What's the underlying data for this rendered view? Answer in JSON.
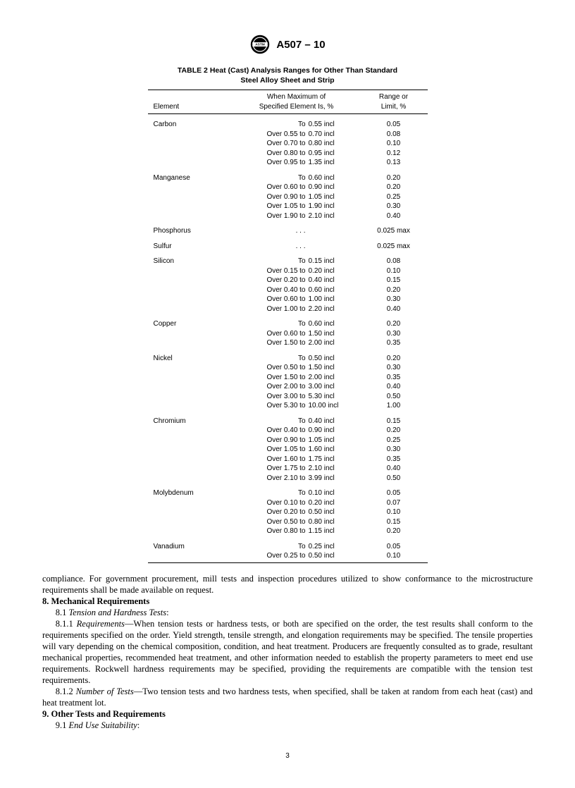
{
  "header": {
    "doc_id": "A507 – 10"
  },
  "table": {
    "title": "TABLE 2   Heat (Cast) Analysis Ranges for Other Than Standard Steel Alloy Sheet and Strip",
    "columns": {
      "element": "Element",
      "spec": "When Maximum of\nSpecified Element Is, %",
      "range": "Range or\nLimit, %"
    },
    "groups": [
      {
        "element": "Carbon",
        "rows": [
          {
            "aL": "To",
            "aR": "0.55 incl",
            "range": "0.05"
          },
          {
            "aL": "Over 0.55 to",
            "aR": "0.70 incl",
            "range": "0.08"
          },
          {
            "aL": "Over 0.70 to",
            "aR": "0.80 incl",
            "range": "0.10"
          },
          {
            "aL": "Over 0.80 to",
            "aR": "0.95 incl",
            "range": "0.12"
          },
          {
            "aL": "Over 0.95 to",
            "aR": "1.35 incl",
            "range": "0.13"
          }
        ]
      },
      {
        "element": "Manganese",
        "rows": [
          {
            "aL": "To",
            "aR": "0.60 incl",
            "range": "0.20"
          },
          {
            "aL": "Over 0.60 to",
            "aR": "0.90 incl",
            "range": "0.20"
          },
          {
            "aL": "Over 0.90 to",
            "aR": "1.05 incl",
            "range": "0.25"
          },
          {
            "aL": "Over 1.05 to",
            "aR": "1.90 incl",
            "range": "0.30"
          },
          {
            "aL": "Over 1.90 to",
            "aR": "2.10 incl",
            "range": "0.40"
          }
        ]
      },
      {
        "element": "Phosphorus",
        "rows": [
          {
            "aL": ". . .",
            "aR": "",
            "range": "0.025 max"
          }
        ]
      },
      {
        "element": "Sulfur",
        "rows": [
          {
            "aL": ". . .",
            "aR": "",
            "range": "0.025 max"
          }
        ]
      },
      {
        "element": "Silicon",
        "rows": [
          {
            "aL": "To",
            "aR": "0.15 incl",
            "range": "0.08"
          },
          {
            "aL": "Over 0.15 to",
            "aR": "0.20 incl",
            "range": "0.10"
          },
          {
            "aL": "Over 0.20 to",
            "aR": "0.40 incl",
            "range": "0.15"
          },
          {
            "aL": "Over 0.40 to",
            "aR": "0.60 incl",
            "range": "0.20"
          },
          {
            "aL": "Over 0.60 to",
            "aR": "1.00 incl",
            "range": "0.30"
          },
          {
            "aL": "Over 1.00 to",
            "aR": "2.20 incl",
            "range": "0.40"
          }
        ]
      },
      {
        "element": "Copper",
        "rows": [
          {
            "aL": "To",
            "aR": "0.60 incl",
            "range": "0.20"
          },
          {
            "aL": "Over 0.60 to",
            "aR": "1.50 incl",
            "range": "0.30"
          },
          {
            "aL": "Over 1.50 to",
            "aR": "2.00 incl",
            "range": "0.35"
          }
        ]
      },
      {
        "element": "Nickel",
        "rows": [
          {
            "aL": "To",
            "aR": "0.50 incl",
            "range": "0.20"
          },
          {
            "aL": "Over 0.50 to",
            "aR": "1.50 incl",
            "range": "0.30"
          },
          {
            "aL": "Over 1.50 to",
            "aR": "2.00 incl",
            "range": "0.35"
          },
          {
            "aL": "Over 2.00 to",
            "aR": "3.00 incl",
            "range": "0.40"
          },
          {
            "aL": "Over 3.00 to",
            "aR": "5.30 incl",
            "range": "0.50"
          },
          {
            "aL": "Over 5.30 to",
            "aR": "10.00 incl",
            "range": "1.00"
          }
        ]
      },
      {
        "element": "Chromium",
        "rows": [
          {
            "aL": "To",
            "aR": "0.40 incl",
            "range": "0.15"
          },
          {
            "aL": "Over 0.40 to",
            "aR": "0.90 incl",
            "range": "0.20"
          },
          {
            "aL": "Over 0.90 to",
            "aR": "1.05 incl",
            "range": "0.25"
          },
          {
            "aL": "Over 1.05 to",
            "aR": "1.60 incl",
            "range": "0.30"
          },
          {
            "aL": "Over 1.60 to",
            "aR": "1.75 incl",
            "range": "0.35"
          },
          {
            "aL": "Over 1.75 to",
            "aR": "2.10 incl",
            "range": "0.40"
          },
          {
            "aL": "Over 2.10 to",
            "aR": "3.99 incl",
            "range": "0.50"
          }
        ]
      },
      {
        "element": "Molybdenum",
        "rows": [
          {
            "aL": "To",
            "aR": "0.10 incl",
            "range": "0.05"
          },
          {
            "aL": "Over 0.10 to",
            "aR": "0.20 incl",
            "range": "0.07"
          },
          {
            "aL": "Over 0.20 to",
            "aR": "0.50 incl",
            "range": "0.10"
          },
          {
            "aL": "Over 0.50 to",
            "aR": "0.80 incl",
            "range": "0.15"
          },
          {
            "aL": "Over 0.80 to",
            "aR": "1.15 incl",
            "range": "0.20"
          }
        ]
      },
      {
        "element": "Vanadium",
        "rows": [
          {
            "aL": "To",
            "aR": "0.25 incl",
            "range": "0.05"
          },
          {
            "aL": "Over 0.25 to",
            "aR": "0.50 incl",
            "range": "0.10"
          }
        ]
      }
    ]
  },
  "body": {
    "p_compliance": "compliance. For government procurement, mill tests and inspection procedures utilized to show conformance to the microstructure requirements shall be made available on request.",
    "sec8_title": "8.  Mechanical Requirements",
    "sec8_1_num": "8.1",
    "sec8_1_title": "Tension and Hardness Tests",
    "colon": ":",
    "sec8_1_1_num": "8.1.1",
    "sec8_1_1_title": "Requirements",
    "dash": "—",
    "sec8_1_1_text": "When tension tests or hardness tests, or both are specified on the order, the test results shall conform to the requirements specified on the order. Yield strength, tensile strength, and elongation requirements may be specified. The tensile properties will vary depending on the chemical composition, condition, and heat treatment. Producers are frequently consulted as to grade, resultant mechanical properties, recommended heat treatment, and other information needed to establish the property parameters to meet end use requirements. Rockwell hardness requirements may be specified, providing the requirements are compatible with the tension test requirements.",
    "sec8_1_2_num": "8.1.2",
    "sec8_1_2_title": "Number of Tests",
    "sec8_1_2_text": "Two tension tests and two hardness tests, when specified, shall be taken at random from each heat (cast) and heat treatment lot.",
    "sec9_title": "9.  Other Tests and Requirements",
    "sec9_1_num": "9.1",
    "sec9_1_title": "End Use Suitability"
  },
  "page_number": "3"
}
